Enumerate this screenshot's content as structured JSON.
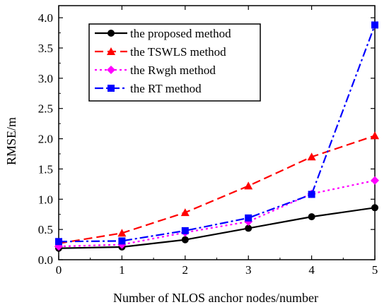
{
  "chart_data": {
    "type": "line",
    "xlabel": "Number of NLOS anchor nodes/number",
    "ylabel": "RMSE/m",
    "xlim": [
      0,
      5
    ],
    "ylim": [
      0,
      4.2
    ],
    "x_ticks": [
      "0",
      "1",
      "2",
      "3",
      "4",
      "5"
    ],
    "y_ticks": [
      "0.0",
      "0.5",
      "1.0",
      "1.5",
      "2.0",
      "2.5",
      "3.0",
      "3.5",
      "4.0"
    ],
    "x_tick_values": [
      0,
      1,
      2,
      3,
      4,
      5
    ],
    "y_tick_values": [
      0,
      0.5,
      1.0,
      1.5,
      2.0,
      2.5,
      3.0,
      3.5,
      4.0
    ],
    "grid": false,
    "legend_position": "top-left",
    "x": [
      0,
      1,
      2,
      3,
      4,
      5
    ],
    "series": [
      {
        "name": "the proposed method",
        "values": [
          0.19,
          0.21,
          0.33,
          0.52,
          0.71,
          0.86
        ],
        "color": "#000000",
        "marker": "circle",
        "dash": "solid"
      },
      {
        "name": "the TSWLS method",
        "values": [
          0.27,
          0.44,
          0.78,
          1.22,
          1.7,
          2.05
        ],
        "color": "#ff0000",
        "marker": "triangle",
        "dash": "dashed"
      },
      {
        "name": "the Rwgh method",
        "values": [
          0.22,
          0.25,
          0.45,
          0.63,
          1.09,
          1.31
        ],
        "color": "#ff00ff",
        "marker": "diamond",
        "dash": "dotted"
      },
      {
        "name": "the RT method",
        "values": [
          0.3,
          0.31,
          0.48,
          0.69,
          1.08,
          3.88
        ],
        "color": "#0000ff",
        "marker": "square",
        "dash": "dashdot"
      }
    ]
  }
}
